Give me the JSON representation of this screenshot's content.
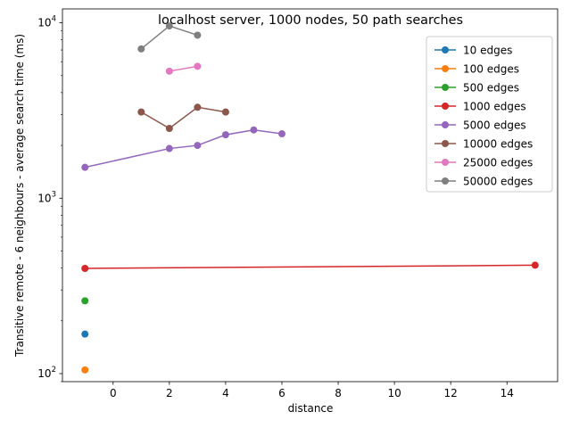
{
  "chart_data": {
    "type": "line",
    "title": "localhost server, 1000 nodes, 50 path searches",
    "xlabel": "distance",
    "ylabel": "Transitive remote - 6 neighbours - average search time (ms)",
    "yscale": "log",
    "xlim": [
      -1.8,
      15.8
    ],
    "ylim": [
      90,
      12000
    ],
    "xticks": [
      0,
      2,
      4,
      6,
      8,
      10,
      12,
      14
    ],
    "yticks": [
      {
        "value": 100,
        "base": "10",
        "exp": "2"
      },
      {
        "value": 1000,
        "base": "10",
        "exp": "3"
      },
      {
        "value": 10000,
        "base": "10",
        "exp": "4"
      }
    ],
    "grid": false,
    "legend_position": "top-right",
    "series": [
      {
        "name": "10 edges",
        "color": "#1f77b4",
        "points": [
          [
            -1,
            168
          ]
        ]
      },
      {
        "name": "100 edges",
        "color": "#ff7f0e",
        "points": [
          [
            -1,
            105
          ]
        ]
      },
      {
        "name": "500 edges",
        "color": "#2ca02c",
        "points": [
          [
            -1,
            260
          ]
        ]
      },
      {
        "name": "1000 edges",
        "color": "#d62728",
        "points": [
          [
            -1,
            398
          ],
          [
            15,
            415
          ]
        ]
      },
      {
        "name": "5000 edges",
        "color": "#9467bd",
        "points": [
          [
            -1,
            1500
          ],
          [
            2,
            1920
          ],
          [
            3,
            2000
          ],
          [
            4,
            2300
          ],
          [
            5,
            2450
          ],
          [
            6,
            2330
          ]
        ]
      },
      {
        "name": "10000 edges",
        "color": "#8c564b",
        "points": [
          [
            1,
            3100
          ],
          [
            2,
            2500
          ],
          [
            3,
            3300
          ],
          [
            4,
            3100
          ]
        ]
      },
      {
        "name": "25000 edges",
        "color": "#e377c2",
        "points": [
          [
            2,
            5300
          ],
          [
            3,
            5650
          ]
        ]
      },
      {
        "name": "50000 edges",
        "color": "#7f7f7f",
        "points": [
          [
            1,
            7100
          ],
          [
            2,
            9600
          ],
          [
            3,
            8500
          ]
        ]
      }
    ]
  }
}
